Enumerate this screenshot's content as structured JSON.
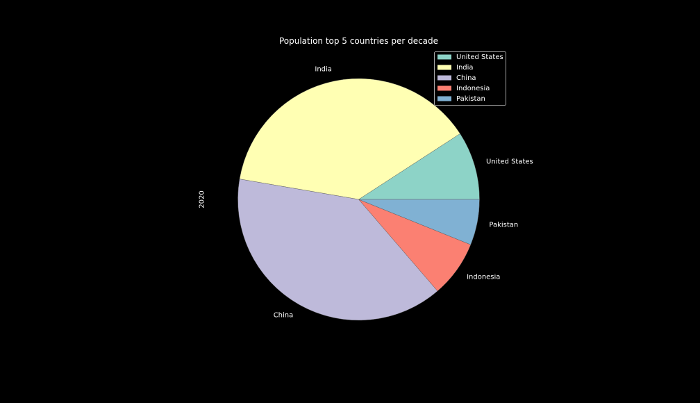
{
  "chart_data": {
    "type": "pie",
    "title": "Population top 5 countries per decade",
    "ylabel": "2020",
    "xlabel": "",
    "categories": [
      "United States",
      "India",
      "China",
      "Indonesia",
      "Pakistan"
    ],
    "values": [
      331,
      1380,
      1411,
      274,
      221
    ],
    "colors": [
      "#8dd3c7",
      "#ffffb3",
      "#bebada",
      "#fb8072",
      "#80b1d3"
    ],
    "start_angle_deg": 0,
    "direction": "counterclockwise",
    "legend_position": "top-right",
    "background": "#000000",
    "text_color": "#ffffff"
  }
}
